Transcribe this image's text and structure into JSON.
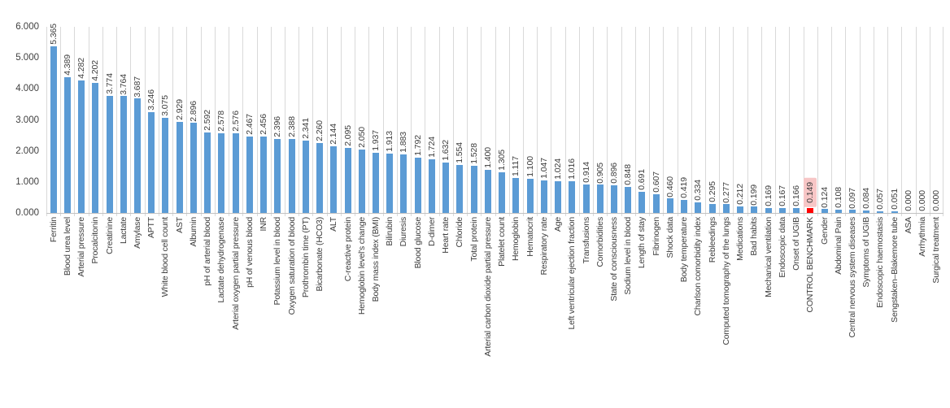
{
  "chart_data": {
    "type": "bar",
    "title": "",
    "xlabel": "",
    "ylabel": "",
    "ylim": [
      0,
      6
    ],
    "y_ticks": [
      "0.000",
      "1.000",
      "2.000",
      "3.000",
      "4.000",
      "5.000",
      "6.000"
    ],
    "value_label_decimals": 3,
    "grid": "vertical-category-gridlines-only",
    "legend": "none",
    "categories": [
      "Ferritin",
      "Blood urea level",
      "Arterial pressure",
      "Procalcitonin",
      "Creatinine",
      "Lactate",
      "Amylase",
      "APTT",
      "White blood cell count",
      "AST",
      "Albumin",
      "pH of arterial blood",
      "Lactate dehydrogenase",
      "Arterial oxygen partial pressure",
      "pH of venous blood",
      "INR",
      "Potassium level in blood",
      "Oxygen saturation of blood",
      "Prothrombin time (PT)",
      "Bicarbonate (HCO3)",
      "ALT",
      "C-reactive protein",
      "Hemoglobin level's change",
      "Body mass index (BMI)",
      "Bilirubin",
      "Diuresis",
      "Blood glucose",
      "D-dimer",
      "Heart rate",
      "Chloride",
      "Total protein",
      "Arterial carbon dioxide partial pressure",
      "Platelet count",
      "Hemoglobin",
      "Hematocrit",
      "Respiratory rate",
      "Age",
      "Left ventricular ejection fraction",
      "Transfusions",
      "Comorbidities",
      "State of consciousness",
      "Sodium level in blood",
      "Length of stay",
      "Fibrinogen",
      "Shock data",
      "Body temperature",
      "Charlson comorbidity index",
      "Rebleedings",
      "Computed tomography of the lungs",
      "Medications",
      "Bad habits",
      "Mechanical ventilation",
      "Endoscopic data",
      "Onset of UGIB",
      "CONTROL BENCHMARK",
      "Gender",
      "Abdominal Pain",
      "Central nervous system diseases",
      "Symptoms of UGIB",
      "Endoscopic haemostasis",
      "Sengstaken–Blakemore tube",
      "ASA",
      "Arrhythmia",
      "Surgical treatment"
    ],
    "values": [
      5.365,
      4.389,
      4.282,
      4.202,
      3.774,
      3.764,
      3.687,
      3.246,
      3.075,
      2.929,
      2.896,
      2.592,
      2.578,
      2.576,
      2.467,
      2.456,
      2.396,
      2.388,
      2.341,
      2.26,
      2.144,
      2.095,
      2.05,
      1.937,
      1.913,
      1.883,
      1.792,
      1.724,
      1.632,
      1.554,
      1.528,
      1.4,
      1.305,
      1.117,
      1.1,
      1.047,
      1.024,
      1.016,
      0.914,
      0.905,
      0.896,
      0.848,
      0.691,
      0.607,
      0.46,
      0.419,
      0.334,
      0.295,
      0.277,
      0.212,
      0.199,
      0.169,
      0.167,
      0.166,
      0.149,
      0.124,
      0.108,
      0.097,
      0.084,
      0.057,
      0.051,
      0.0,
      0.0,
      0.0
    ],
    "benchmark": {
      "index": 54,
      "label": "CONTROL BENCHMARK",
      "value": 0.149
    },
    "colors": {
      "bar": "#5B9BD5",
      "benchmark_bar": "#FF0000",
      "benchmark_highlight_bg": "#F7C6C6",
      "gridline": "#D9D9D9",
      "axis_line": "#C2C2C2",
      "text": "#3D3D3D"
    }
  }
}
